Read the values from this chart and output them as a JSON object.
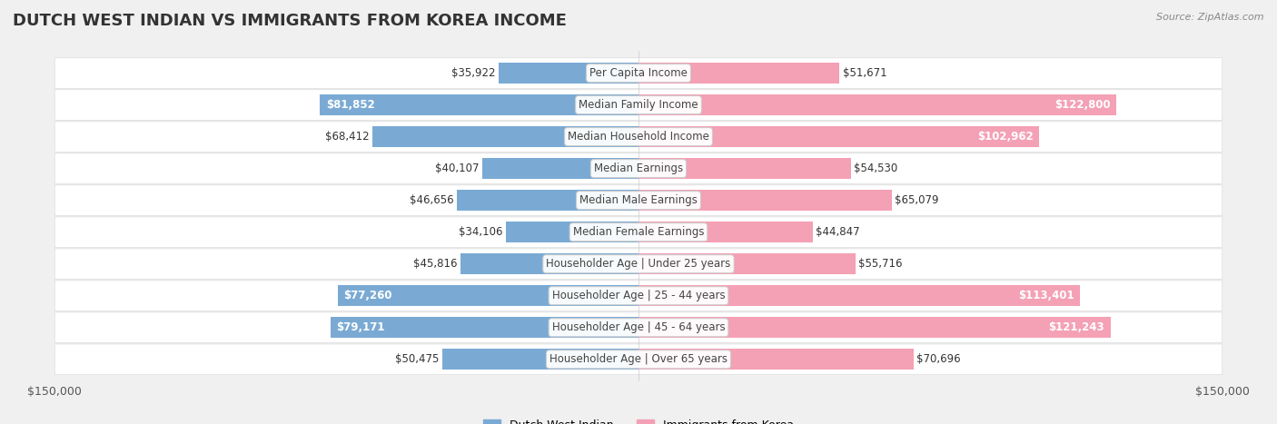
{
  "title": "DUTCH WEST INDIAN VS IMMIGRANTS FROM KOREA INCOME",
  "source": "Source: ZipAtlas.com",
  "categories": [
    "Per Capita Income",
    "Median Family Income",
    "Median Household Income",
    "Median Earnings",
    "Median Male Earnings",
    "Median Female Earnings",
    "Householder Age | Under 25 years",
    "Householder Age | 25 - 44 years",
    "Householder Age | 45 - 64 years",
    "Householder Age | Over 65 years"
  ],
  "dutch_values": [
    35922,
    81852,
    68412,
    40107,
    46656,
    34106,
    45816,
    77260,
    79171,
    50475
  ],
  "korea_values": [
    51671,
    122800,
    102962,
    54530,
    65079,
    44847,
    55716,
    113401,
    121243,
    70696
  ],
  "dutch_color": "#7aaad4",
  "korea_color": "#f4a0b5",
  "dutch_color_dark": "#5b8fc7",
  "korea_color_dark": "#f07090",
  "max_value": 150000,
  "bg_color": "#f0f0f0",
  "row_bg": "#f8f8f8",
  "label_bg": "#ffffff",
  "title_fontsize": 13,
  "axis_label_fontsize": 9,
  "bar_label_fontsize": 8.5,
  "category_fontsize": 8.5,
  "legend_fontsize": 9
}
